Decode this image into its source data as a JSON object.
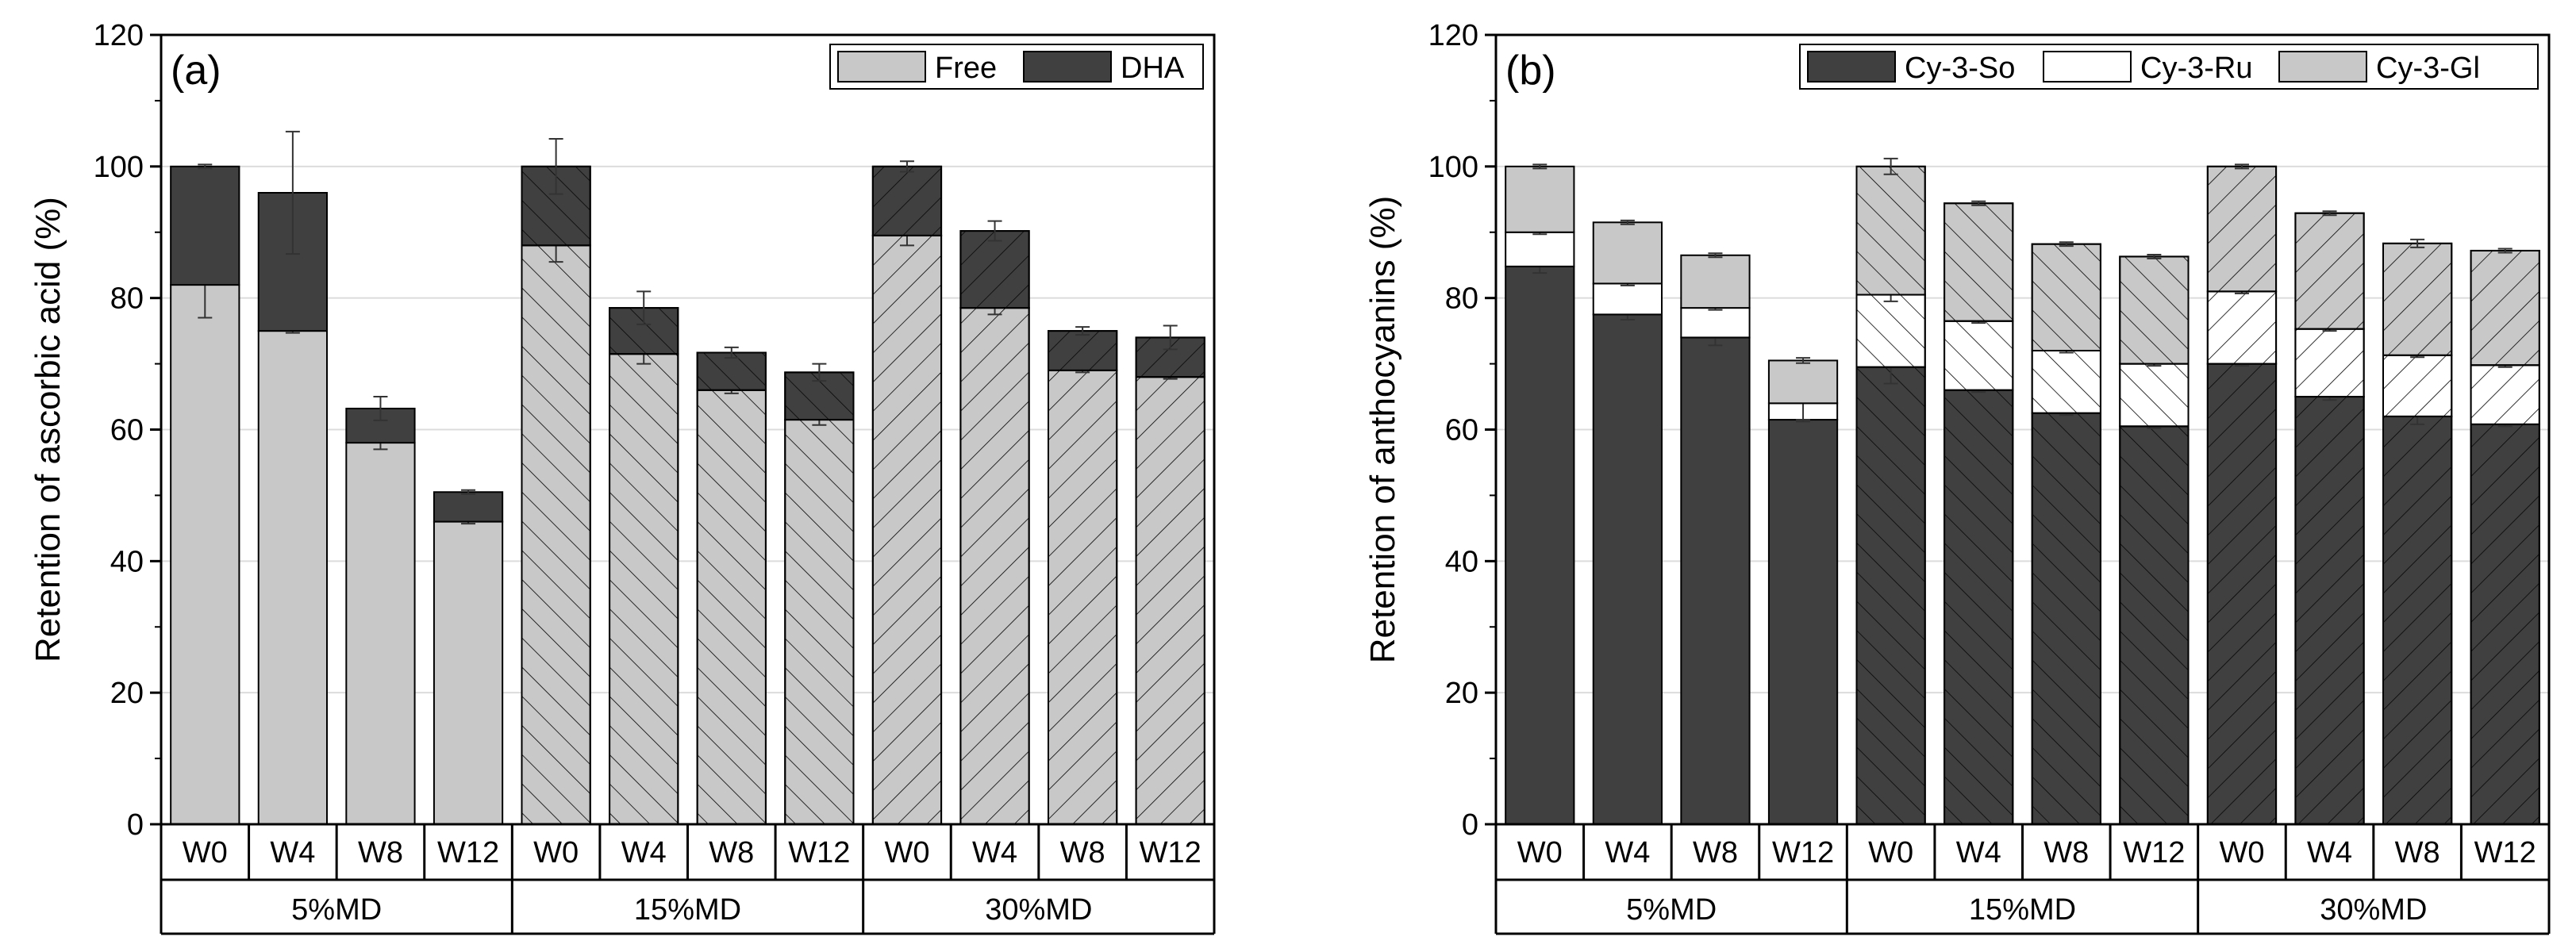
{
  "chart_data": [
    {
      "type": "bar",
      "stacked": true,
      "panel_label": "(a)",
      "ylabel": "Retention of ascorbic acid (%)",
      "ylim": [
        0,
        120
      ],
      "yticks": [
        0,
        20,
        40,
        60,
        80,
        100,
        120
      ],
      "grid": "horizontal",
      "legend_position": "top-right",
      "groups": [
        {
          "label": "5%MD",
          "categories": [
            "W0",
            "W4",
            "W8",
            "W12"
          ],
          "hatch": "none"
        },
        {
          "label": "15%MD",
          "categories": [
            "W0",
            "W4",
            "W8",
            "W12"
          ],
          "hatch": "backslash"
        },
        {
          "label": "30%MD",
          "categories": [
            "W0",
            "W4",
            "W8",
            "W12"
          ],
          "hatch": "slash"
        }
      ],
      "series": [
        {
          "name": "Free",
          "color": "#c8c8c8",
          "values": [
            82,
            75,
            58,
            46,
            88,
            71.5,
            66,
            61.5,
            89.5,
            78.5,
            69,
            68
          ],
          "errors": [
            5,
            0.3,
            1,
            0.3,
            2.5,
            1.5,
            0.5,
            0.8,
            1.5,
            1,
            0.3,
            0.3
          ]
        },
        {
          "name": "DHA",
          "color": "#404040",
          "values": [
            18,
            21,
            5.2,
            4.5,
            12,
            7,
            5.7,
            7.2,
            10.5,
            11.7,
            6,
            6
          ],
          "errors": [
            0.3,
            9.3,
            1.8,
            0.3,
            4.2,
            2.5,
            0.8,
            1.3,
            0.8,
            1.5,
            0.6,
            1.8
          ]
        }
      ]
    },
    {
      "type": "bar",
      "stacked": true,
      "panel_label": "(b)",
      "ylabel": "Retention of anthocyanins (%)",
      "ylim": [
        0,
        120
      ],
      "yticks": [
        0,
        20,
        40,
        60,
        80,
        100,
        120
      ],
      "grid": "horizontal",
      "legend_position": "top-right",
      "groups": [
        {
          "label": "5%MD",
          "categories": [
            "W0",
            "W4",
            "W8",
            "W12"
          ],
          "hatch": "none"
        },
        {
          "label": "15%MD",
          "categories": [
            "W0",
            "W4",
            "W8",
            "W12"
          ],
          "hatch": "backslash"
        },
        {
          "label": "30%MD",
          "categories": [
            "W0",
            "W4",
            "W8",
            "W12"
          ],
          "hatch": "slash"
        }
      ],
      "series": [
        {
          "name": "Cy-3-So",
          "color": "#404040",
          "values": [
            84.8,
            77.5,
            74,
            61.5,
            69.5,
            66,
            62.5,
            60.5,
            70,
            65,
            62,
            60.8
          ],
          "errors": [
            1,
            0.8,
            1.2,
            0.3,
            2.5,
            0.3,
            0.3,
            0.3,
            0.3,
            0.5,
            1.2,
            0.3
          ]
        },
        {
          "name": "Cy-3-Ru",
          "color": "#ffffff",
          "values": [
            5.2,
            4.7,
            4.5,
            2.5,
            11,
            10.5,
            9.5,
            9.5,
            11,
            10.3,
            9.3,
            9
          ],
          "errors": [
            0.3,
            0.3,
            0.3,
            2.5,
            1,
            0.3,
            0.3,
            0.3,
            0.3,
            0.3,
            0.3,
            0.3
          ]
        },
        {
          "name": "Cy-3-Gl",
          "color": "#c8c8c8",
          "values": [
            10,
            9.3,
            8,
            6.5,
            19.5,
            17.9,
            16.2,
            16.3,
            19,
            17.6,
            17,
            17.4
          ],
          "errors": [
            0.3,
            0.3,
            0.3,
            0.4,
            1.2,
            0.3,
            0.3,
            0.3,
            0.3,
            0.3,
            0.6,
            0.3
          ]
        }
      ]
    }
  ]
}
